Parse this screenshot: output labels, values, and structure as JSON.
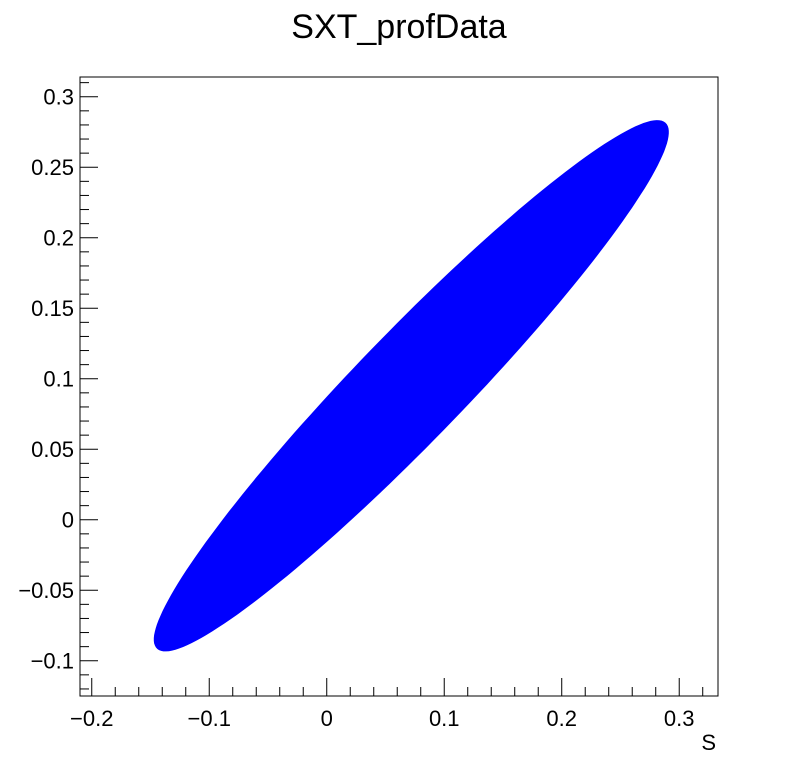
{
  "chart_data": {
    "type": "scatter",
    "title": "SXT_profData",
    "xlabel": "S",
    "ylabel": "",
    "xlim": [
      -0.21,
      0.333
    ],
    "ylim": [
      -0.125,
      0.314
    ],
    "grid": false,
    "legend": "none",
    "x_ticks": [
      -0.2,
      -0.1,
      0,
      0.1,
      0.2,
      0.3
    ],
    "x_tick_labels": [
      "−0.2",
      "−0.1",
      "0",
      "0.1",
      "0.2",
      "0.3"
    ],
    "y_ticks": [
      -0.1,
      -0.05,
      0,
      0.05,
      0.1,
      0.15,
      0.2,
      0.25,
      0.3
    ],
    "y_tick_labels": [
      "−0.1",
      "−0.05",
      "0",
      "0.05",
      "0.1",
      "0.15",
      "0.2",
      "0.25",
      "0.3"
    ],
    "series": [
      {
        "marker_color": "#0000ff",
        "shape": "ellipse",
        "center": [
          0.072,
          0.095
        ],
        "angle_deg": 40.5,
        "semi_major": 0.285,
        "semi_minor": 0.041
      }
    ]
  }
}
